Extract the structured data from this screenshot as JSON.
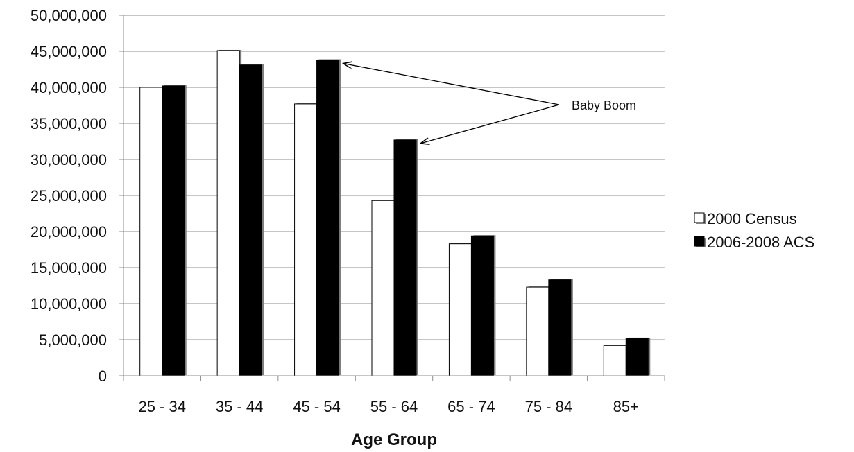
{
  "chart_data": {
    "type": "bar",
    "title": "",
    "xlabel": "Age Group",
    "ylabel": "",
    "categories": [
      "25 - 34",
      "35 - 44",
      "45 - 54",
      "55 - 64",
      "65 - 74",
      "75 - 84",
      "85+"
    ],
    "series": [
      {
        "name": "2000 Census",
        "color": "#ffffff",
        "values": [
          40000000,
          45100000,
          37700000,
          24300000,
          18300000,
          12300000,
          4200000
        ]
      },
      {
        "name": "2006-2008 ACS",
        "color": "#000000",
        "values": [
          40200000,
          43100000,
          43800000,
          32700000,
          19400000,
          13300000,
          5200000
        ]
      }
    ],
    "ylim": [
      0,
      50000000
    ],
    "yticks": [
      0,
      5000000,
      10000000,
      15000000,
      20000000,
      25000000,
      30000000,
      35000000,
      40000000,
      45000000,
      50000000
    ],
    "ytick_labels": [
      "0",
      "5,000,000",
      "10,000,000",
      "15,000,000",
      "20,000,000",
      "25,000,000",
      "30,000,000",
      "35,000,000",
      "40,000,000",
      "45,000,000",
      "50,000,000"
    ],
    "grid": true,
    "legend_position": "right",
    "annotation": {
      "text": "Baby Boom",
      "targets": [
        {
          "series": 1,
          "category": 2
        },
        {
          "series": 1,
          "category": 3
        }
      ]
    }
  }
}
